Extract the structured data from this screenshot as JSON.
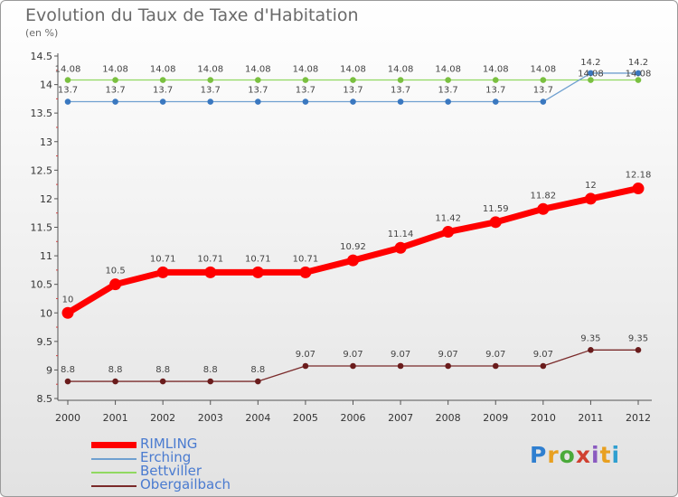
{
  "header": {
    "title": "Evolution du Taux de Taxe d'Habitation",
    "unit": "(en %)"
  },
  "logo": {
    "text": "Proxiti",
    "colors": [
      "#2f7fd0",
      "#e8a020",
      "#4aaa3a",
      "#d04030",
      "#8a5ac0",
      "#e8a020",
      "#2f9fd0"
    ]
  },
  "chart_data": {
    "type": "line",
    "x": [
      "2000",
      "2001",
      "2002",
      "2003",
      "2004",
      "2005",
      "2006",
      "2007",
      "2008",
      "2009",
      "2010",
      "2011",
      "2012"
    ],
    "ylim": [
      8.5,
      14.5
    ],
    "yticks": [
      "8.5",
      "9",
      "9.5",
      "10",
      "10.5",
      "11",
      "11.5",
      "12",
      "12.5",
      "13",
      "13.5",
      "14",
      "14.5"
    ],
    "grid": false,
    "legend_position": "bottom-left",
    "series": [
      {
        "name": "RIMLING",
        "color": "#ff0000",
        "values": [
          10,
          10.5,
          10.71,
          10.71,
          10.71,
          10.71,
          10.92,
          11.14,
          11.42,
          11.59,
          11.82,
          12,
          12.18
        ],
        "labels": [
          "10",
          "10.5",
          "10.71",
          "10.71",
          "10.71",
          "10.71",
          "10.92",
          "11.14",
          "11.42",
          "11.59",
          "11.82",
          "12",
          "12.18"
        ]
      },
      {
        "name": "Erching",
        "color": "#6fa0d0",
        "values": [
          13.7,
          13.7,
          13.7,
          13.7,
          13.7,
          13.7,
          13.7,
          13.7,
          13.7,
          13.7,
          13.7,
          14.2,
          14.2
        ],
        "labels": [
          "13.7",
          "13.7",
          "13.7",
          "13.7",
          "13.7",
          "13.7",
          "13.7",
          "13.7",
          "13.7",
          "13.7",
          "13.7",
          "14.2",
          "14.2"
        ]
      },
      {
        "name": "Bettviller",
        "color": "#90d860",
        "values": [
          14.08,
          14.08,
          14.08,
          14.08,
          14.08,
          14.08,
          14.08,
          14.08,
          14.08,
          14.08,
          14.08,
          14.08,
          14.08
        ],
        "labels": [
          "14.08",
          "14.08",
          "14.08",
          "14.08",
          "14.08",
          "14.08",
          "14.08",
          "14.08",
          "14.08",
          "14.08",
          "14.08",
          "14.08",
          "14.08"
        ]
      },
      {
        "name": "Obergailbach",
        "color": "#7a2a2a",
        "values": [
          8.8,
          8.8,
          8.8,
          8.8,
          8.8,
          9.07,
          9.07,
          9.07,
          9.07,
          9.07,
          9.07,
          9.35,
          9.35
        ],
        "labels": [
          "8.8",
          "8.8",
          "8.8",
          "8.8",
          "8.8",
          "9.07",
          "9.07",
          "9.07",
          "9.07",
          "9.07",
          "9.07",
          "9.35",
          "9.35"
        ]
      }
    ]
  }
}
